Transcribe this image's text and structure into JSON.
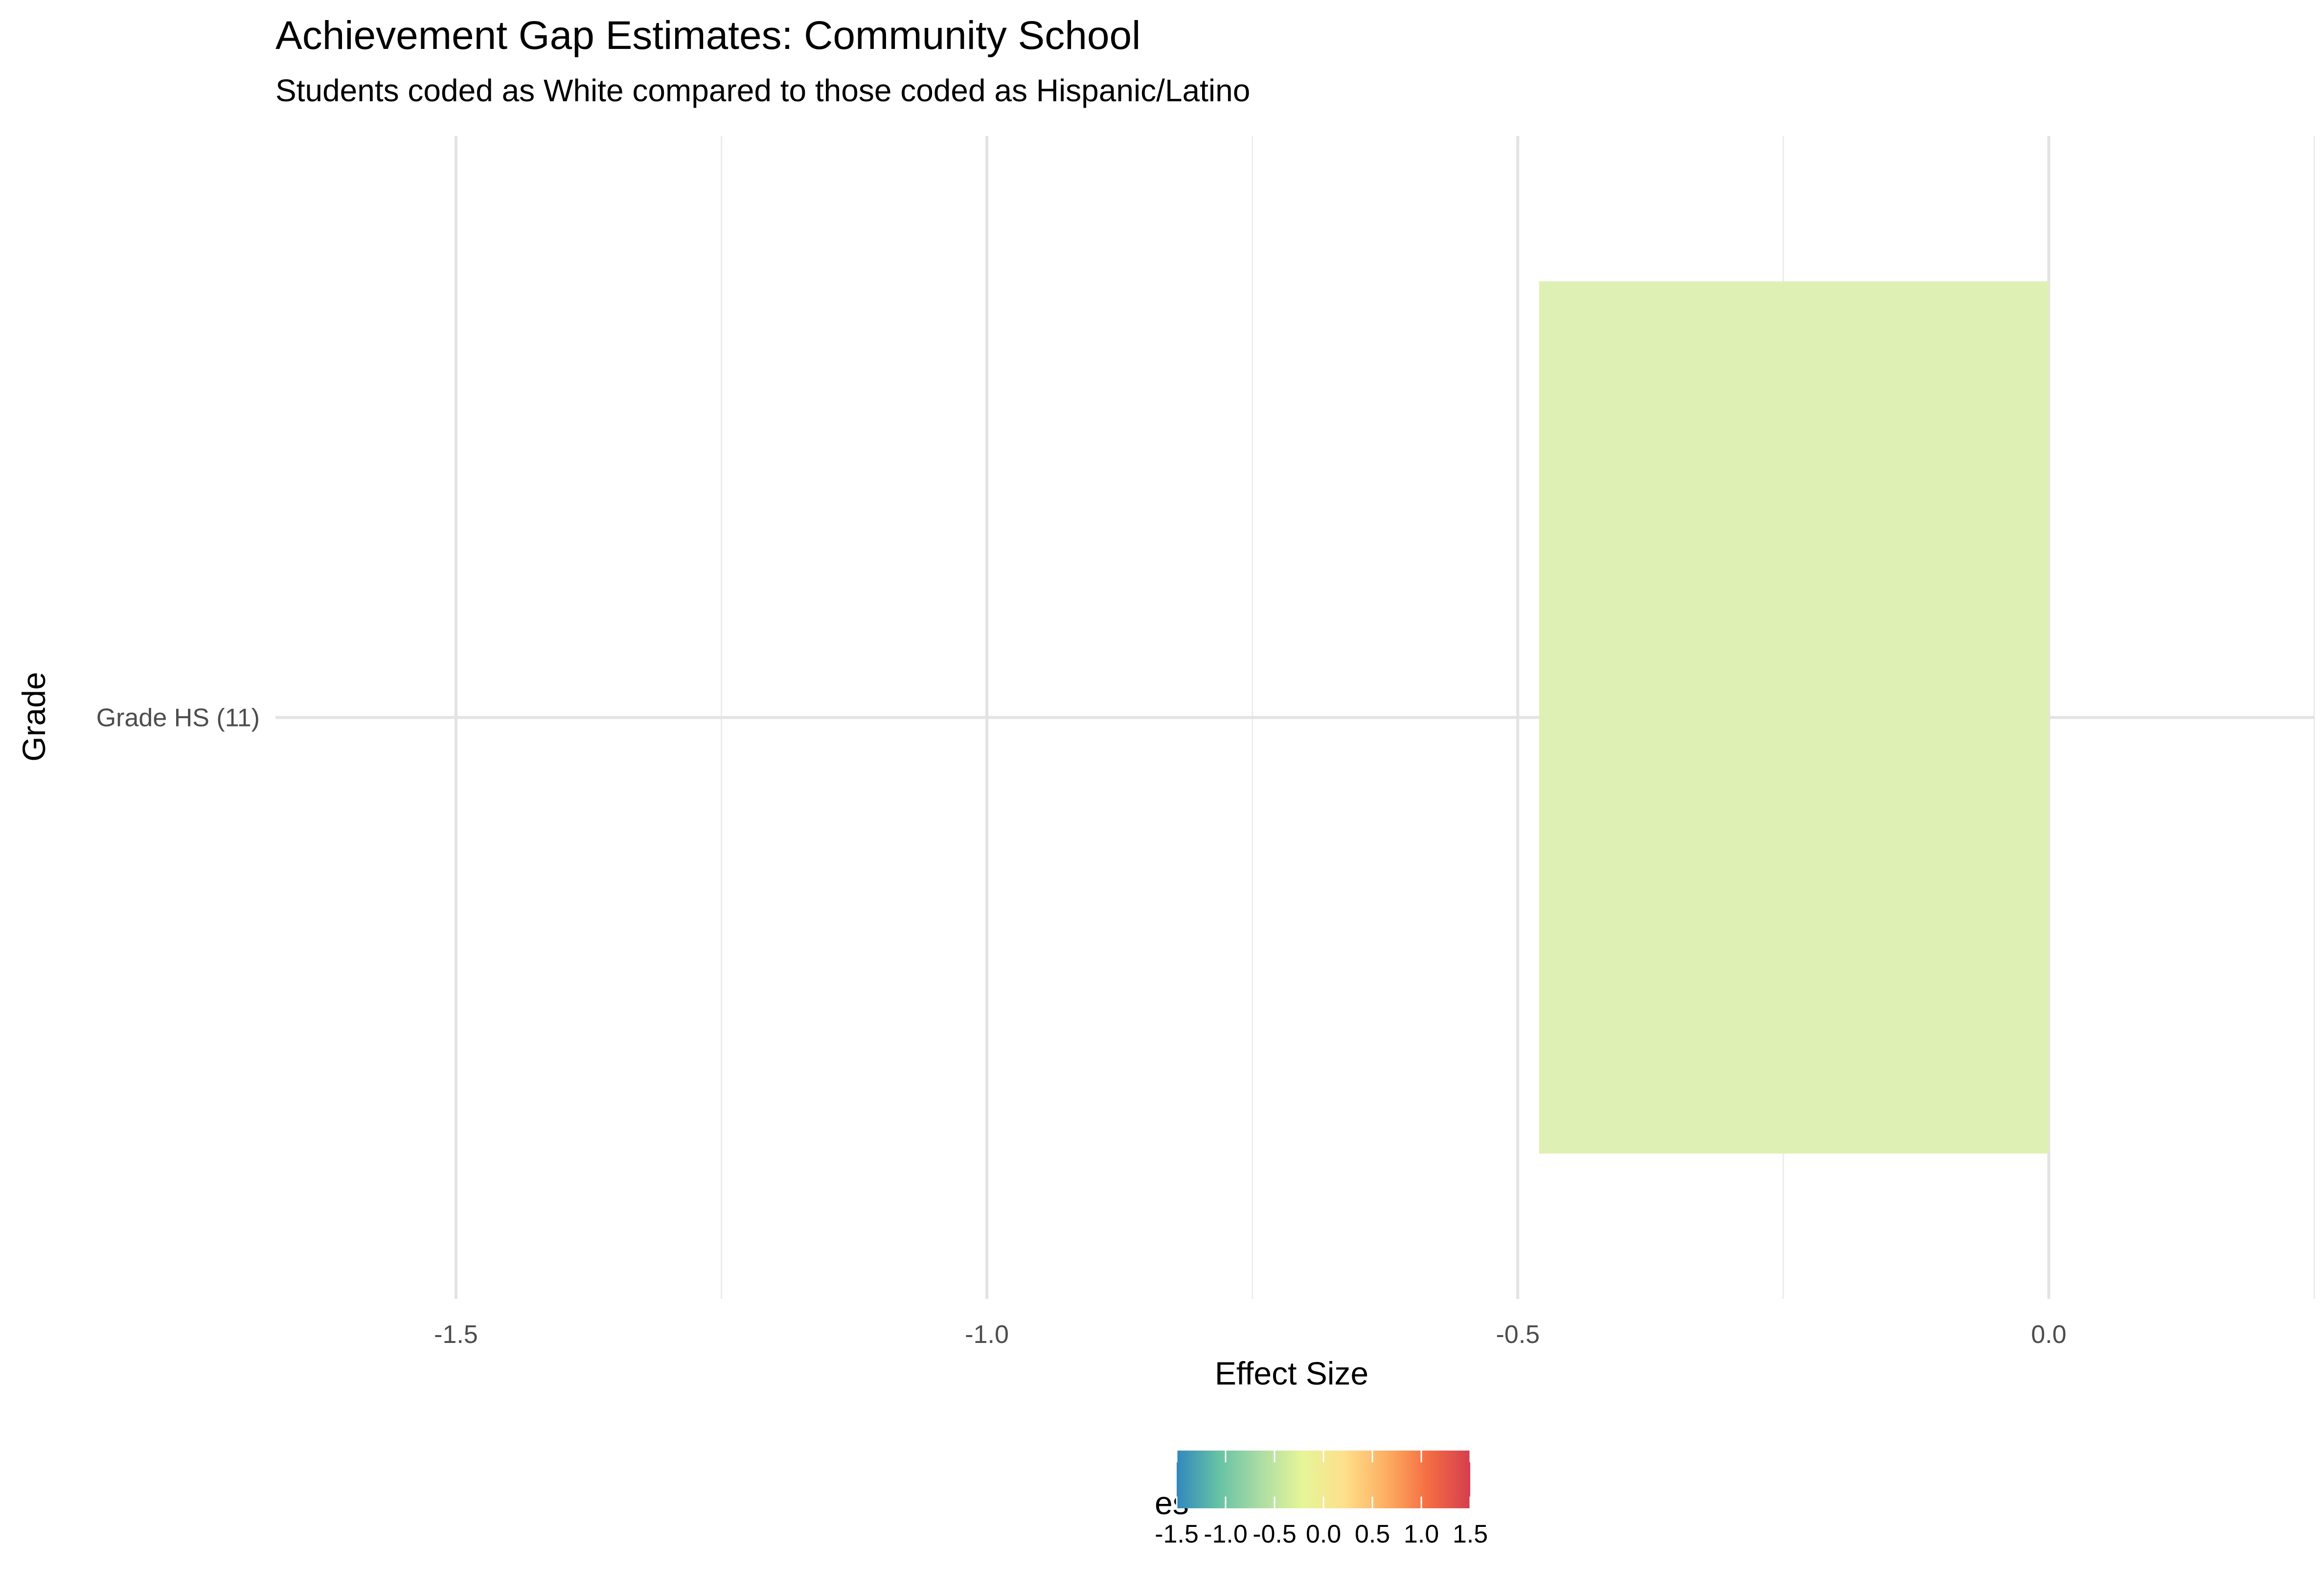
{
  "chart_data": {
    "type": "bar",
    "orientation": "horizontal",
    "title": "Achievement Gap Estimates: Community School",
    "subtitle": "Students coded as White compared to those coded as Hispanic/Latino",
    "xlabel": "Effect Size",
    "ylabel": "Grade",
    "categories": [
      "Grade HS (11)"
    ],
    "values": [
      -0.48
    ],
    "xlim": [
      -1.67,
      0.25
    ],
    "x_ticks": [
      -1.5,
      -1.0,
      -0.5,
      0.0
    ],
    "x_tick_labels": [
      "-1.5",
      "-1.0",
      "-0.5",
      "0.0"
    ],
    "grid": true,
    "bar_color": "#dff0b4",
    "legend": {
      "title": "es",
      "position": "bottom",
      "type": "colorbar",
      "range": [
        -1.5,
        1.5
      ],
      "ticks": [
        -1.5,
        -1.0,
        -0.5,
        0.0,
        0.5,
        1.0,
        1.5
      ],
      "tick_labels": [
        "-1.5",
        "-1.0",
        "-0.5",
        "0.0",
        "0.5",
        "1.0",
        "1.5"
      ],
      "colors": [
        "#3288bd",
        "#66c2a5",
        "#abdda4",
        "#e6f598",
        "#fee08b",
        "#fdae61",
        "#f46d43",
        "#d53e4f"
      ]
    }
  }
}
